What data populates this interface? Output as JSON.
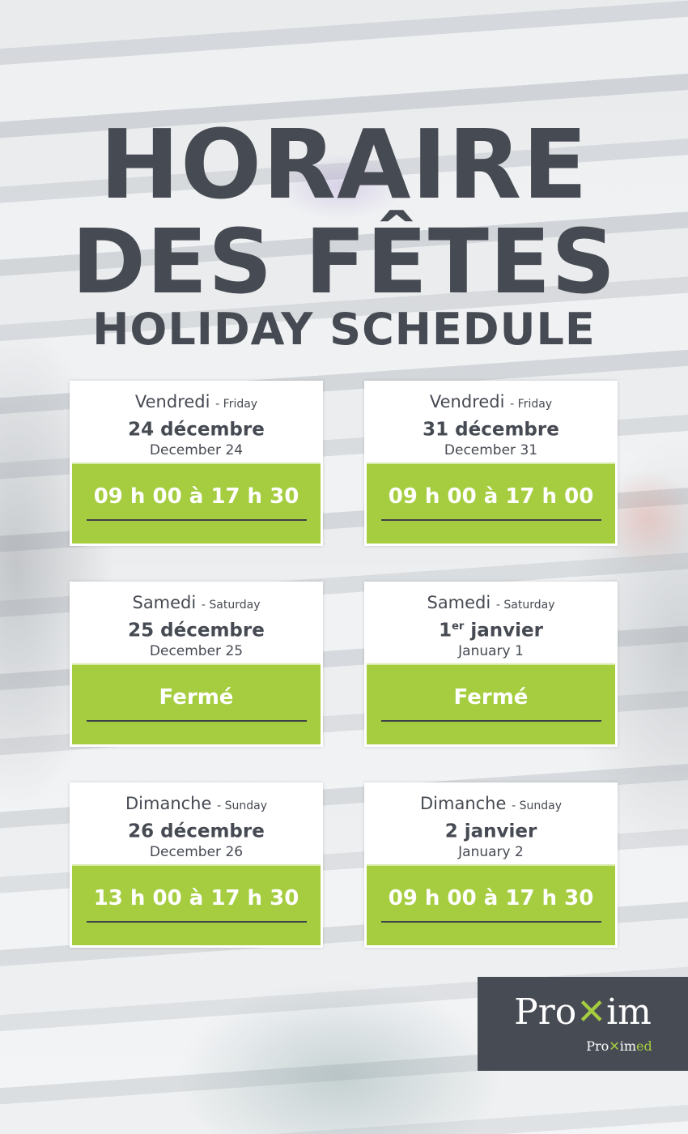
{
  "title": {
    "line1": "HORAIRE",
    "line2": "DES FÊTES",
    "line3": "HOLIDAY SCHEDULE"
  },
  "cards": [
    {
      "day_fr": "Vendredi",
      "day_en": "- Friday",
      "date_fr": "24 décembre",
      "date_sup": "",
      "date_fr_rest": "",
      "date_en": "December 24",
      "hours": "09 h 00 à 17 h 30"
    },
    {
      "day_fr": "Vendredi",
      "day_en": "- Friday",
      "date_fr": "31 décembre",
      "date_sup": "",
      "date_fr_rest": "",
      "date_en": "December 31",
      "hours": "09 h 00 à 17 h 00"
    },
    {
      "day_fr": "Samedi",
      "day_en": "- Saturday",
      "date_fr": "25 décembre",
      "date_sup": "",
      "date_fr_rest": "",
      "date_en": "December 25",
      "hours": "Fermé"
    },
    {
      "day_fr": "Samedi",
      "day_en": "- Saturday",
      "date_fr": "1",
      "date_sup": "er",
      "date_fr_rest": " janvier",
      "date_en": "January 1",
      "hours": "Fermé"
    },
    {
      "day_fr": "Dimanche",
      "day_en": "- Sunday",
      "date_fr": "26 décembre",
      "date_sup": "",
      "date_fr_rest": "",
      "date_en": "December 26",
      "hours": "13 h 00 à 17 h 30"
    },
    {
      "day_fr": "Dimanche",
      "day_en": "- Sunday",
      "date_fr": "2 janvier",
      "date_sup": "",
      "date_fr_rest": "",
      "date_en": "January 2",
      "hours": "09 h 00 à 17 h 30"
    }
  ],
  "logo": {
    "brand": "Proxim",
    "sub_brand": "Proximed",
    "accent": "#a5cd3f",
    "bg": "#474b54"
  }
}
